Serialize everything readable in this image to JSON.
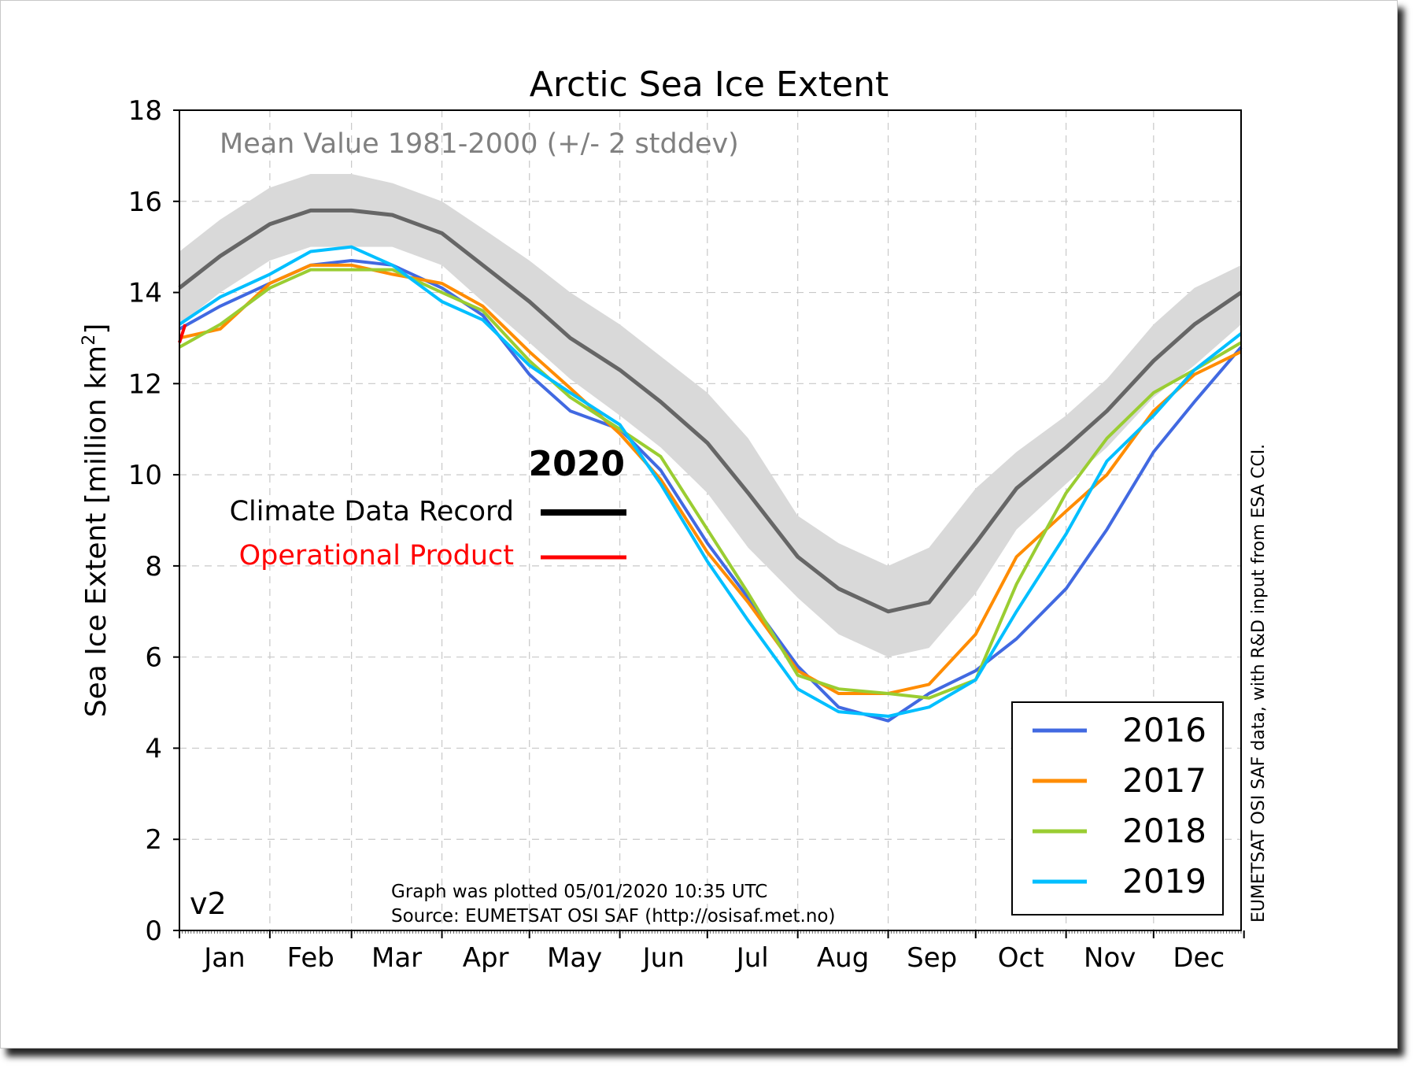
{
  "chart_data": {
    "type": "line",
    "title": "Arctic Sea Ice Extent",
    "ylabel": "Sea Ice Extent [million km²]",
    "ylabel_base": "Sea Ice Extent [million km",
    "ylabel_sup": "2",
    "ylabel_end": "]",
    "xlabel": "",
    "ylim": [
      0,
      18
    ],
    "xlim": [
      1,
      365
    ],
    "yticks": [
      0,
      2,
      4,
      6,
      8,
      10,
      12,
      14,
      16,
      18
    ],
    "month_labels": [
      "Jan",
      "Feb",
      "Mar",
      "Apr",
      "May",
      "Jun",
      "Jul",
      "Aug",
      "Sep",
      "Oct",
      "Nov",
      "Dec"
    ],
    "grid": true,
    "mean_label": "Mean Value 1981-2000 (+/- 2 stddev)",
    "year_label": "2020",
    "cdr_label": "Climate Data Record",
    "op_label": "Operational Product",
    "version_label": "v2",
    "footer_line1": "Graph was plotted 05/01/2020 10:35 UTC",
    "footer_line2": "Source: EUMETSAT OSI SAF (http://osisaf.met.no)",
    "side_credit": "EUMETSAT OSI SAF data, with R&D input from ESA CCI.",
    "legend_position": "lower-right",
    "x_days": [
      1,
      15,
      32,
      46,
      60,
      74,
      91,
      105,
      121,
      135,
      152,
      166,
      182,
      196,
      213,
      227,
      244,
      258,
      274,
      288,
      305,
      319,
      335,
      349,
      365
    ],
    "mean": [
      14.1,
      14.8,
      15.5,
      15.8,
      15.8,
      15.7,
      15.3,
      14.6,
      13.8,
      13.0,
      12.3,
      11.6,
      10.7,
      9.6,
      8.2,
      7.5,
      7.0,
      7.2,
      8.5,
      9.7,
      10.6,
      11.4,
      12.5,
      13.3,
      14.0
    ],
    "band_upper": [
      14.9,
      15.6,
      16.3,
      16.6,
      16.6,
      16.4,
      16.0,
      15.4,
      14.7,
      14.0,
      13.3,
      12.6,
      11.8,
      10.8,
      9.1,
      8.5,
      8.0,
      8.4,
      9.7,
      10.5,
      11.3,
      12.1,
      13.3,
      14.1,
      14.6
    ],
    "band_lower": [
      13.3,
      14.0,
      14.7,
      15.0,
      15.0,
      15.0,
      14.6,
      13.8,
      12.9,
      12.1,
      11.3,
      10.6,
      9.6,
      8.4,
      7.3,
      6.5,
      6.0,
      6.2,
      7.4,
      8.8,
      9.8,
      10.6,
      11.7,
      12.4,
      13.3
    ],
    "operational_2020": {
      "x": [
        1,
        3
      ],
      "y": [
        12.9,
        13.3
      ]
    },
    "series": [
      {
        "name": "2016",
        "color": "#4169e1",
        "values": [
          13.2,
          13.7,
          14.2,
          14.6,
          14.7,
          14.6,
          14.1,
          13.5,
          12.2,
          11.4,
          11.0,
          10.1,
          8.5,
          7.3,
          5.8,
          4.9,
          4.6,
          5.2,
          5.7,
          6.4,
          7.5,
          8.8,
          10.5,
          11.6,
          12.8
        ]
      },
      {
        "name": "2017",
        "color": "#ff8c00",
        "values": [
          13.0,
          13.2,
          14.2,
          14.6,
          14.6,
          14.4,
          14.2,
          13.7,
          12.7,
          11.9,
          10.9,
          9.9,
          8.3,
          7.2,
          5.7,
          5.2,
          5.2,
          5.4,
          6.5,
          8.2,
          9.2,
          10.0,
          11.4,
          12.2,
          12.7
        ]
      },
      {
        "name": "2018",
        "color": "#9acd32",
        "values": [
          12.8,
          13.3,
          14.1,
          14.5,
          14.5,
          14.5,
          14.0,
          13.6,
          12.5,
          11.7,
          11.0,
          10.4,
          8.8,
          7.4,
          5.6,
          5.3,
          5.2,
          5.1,
          5.5,
          7.6,
          9.6,
          10.8,
          11.8,
          12.3,
          12.9
        ]
      },
      {
        "name": "2019",
        "color": "#00bfff",
        "values": [
          13.3,
          13.9,
          14.4,
          14.9,
          15.0,
          14.6,
          13.8,
          13.4,
          12.4,
          11.8,
          11.1,
          9.8,
          8.1,
          6.8,
          5.3,
          4.8,
          4.7,
          4.9,
          5.5,
          7.0,
          8.7,
          10.3,
          11.3,
          12.3,
          13.1
        ]
      }
    ]
  }
}
